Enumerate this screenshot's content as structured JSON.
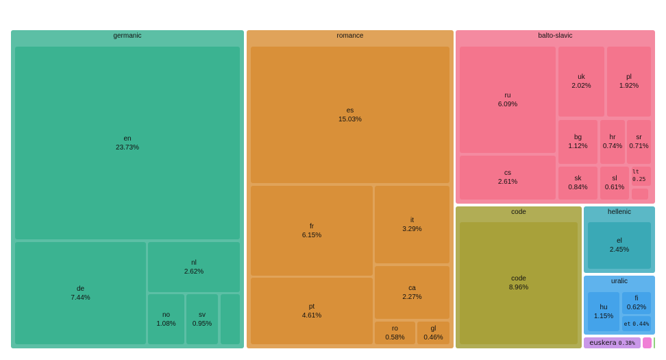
{
  "chart_data": {
    "type": "treemap",
    "groups": [
      {
        "name": "germanic",
        "color": "#5cbfa5",
        "leaf_color": "#3bb391",
        "children": [
          {
            "name": "en",
            "label": "23.73%",
            "value": 23.73
          },
          {
            "name": "de",
            "label": "7.44%",
            "value": 7.44
          },
          {
            "name": "nl",
            "label": "2.62%",
            "value": 2.62
          },
          {
            "name": "no",
            "label": "1.08%",
            "value": 1.08
          },
          {
            "name": "sv",
            "label": "0.95%",
            "value": 0.95
          },
          {
            "name": "",
            "label": "",
            "value": 0.4
          }
        ]
      },
      {
        "name": "romance",
        "color": "#e0a35a",
        "leaf_color": "#d99039",
        "children": [
          {
            "name": "es",
            "label": "15.03%",
            "value": 15.03
          },
          {
            "name": "fr",
            "label": "6.15%",
            "value": 6.15
          },
          {
            "name": "pt",
            "label": "4.61%",
            "value": 4.61
          },
          {
            "name": "it",
            "label": "3.29%",
            "value": 3.29
          },
          {
            "name": "ca",
            "label": "2.27%",
            "value": 2.27
          },
          {
            "name": "ro",
            "label": "0.58%",
            "value": 0.58
          },
          {
            "name": "gl",
            "label": "0.46%",
            "value": 0.46
          }
        ]
      },
      {
        "name": "balto-slavic",
        "color": "#f48aa0",
        "leaf_color": "#f4758d",
        "children": [
          {
            "name": "ru",
            "label": "6.09%",
            "value": 6.09
          },
          {
            "name": "cs",
            "label": "2.61%",
            "value": 2.61
          },
          {
            "name": "uk",
            "label": "2.02%",
            "value": 2.02
          },
          {
            "name": "pl",
            "label": "1.92%",
            "value": 1.92
          },
          {
            "name": "bg",
            "label": "1.12%",
            "value": 1.12
          },
          {
            "name": "hr",
            "label": "0.74%",
            "value": 0.74
          },
          {
            "name": "sr",
            "label": "0.71%",
            "value": 0.71
          },
          {
            "name": "sk",
            "label": "0.84%",
            "value": 0.84
          },
          {
            "name": "sl",
            "label": "0.61%",
            "value": 0.61
          },
          {
            "name": "lt",
            "label": "0.25",
            "value": 0.25
          },
          {
            "name": "",
            "label": "",
            "value": 0.15
          }
        ]
      },
      {
        "name": "code",
        "color": "#b1ad55",
        "leaf_color": "#a8a13a",
        "children": [
          {
            "name": "code",
            "label": "8.96%",
            "value": 8.96
          }
        ]
      },
      {
        "name": "hellenic",
        "color": "#5bb8c6",
        "leaf_color": "#3aa9b6",
        "children": [
          {
            "name": "el",
            "label": "2.45%",
            "value": 2.45
          }
        ]
      },
      {
        "name": "uralic",
        "color": "#5fb3ed",
        "leaf_color": "#44a3ea",
        "children": [
          {
            "name": "hu",
            "label": "1.15%",
            "value": 1.15
          },
          {
            "name": "fi",
            "label": "0.62%",
            "value": 0.62
          },
          {
            "name": "et",
            "label": "0.44%",
            "value": 0.44
          }
        ]
      },
      {
        "name": "euskera",
        "color": "#c997e8",
        "leaf_color": "#c997e8",
        "children": [
          {
            "name": "euskera",
            "label": "0.38%",
            "value": 0.38
          }
        ]
      },
      {
        "name": "",
        "color": "#f07fd6",
        "leaf_color": "#f07fd6",
        "children": []
      },
      {
        "name": "",
        "color": "#8fd07d",
        "leaf_color": "#8fd07d",
        "children": []
      }
    ]
  }
}
